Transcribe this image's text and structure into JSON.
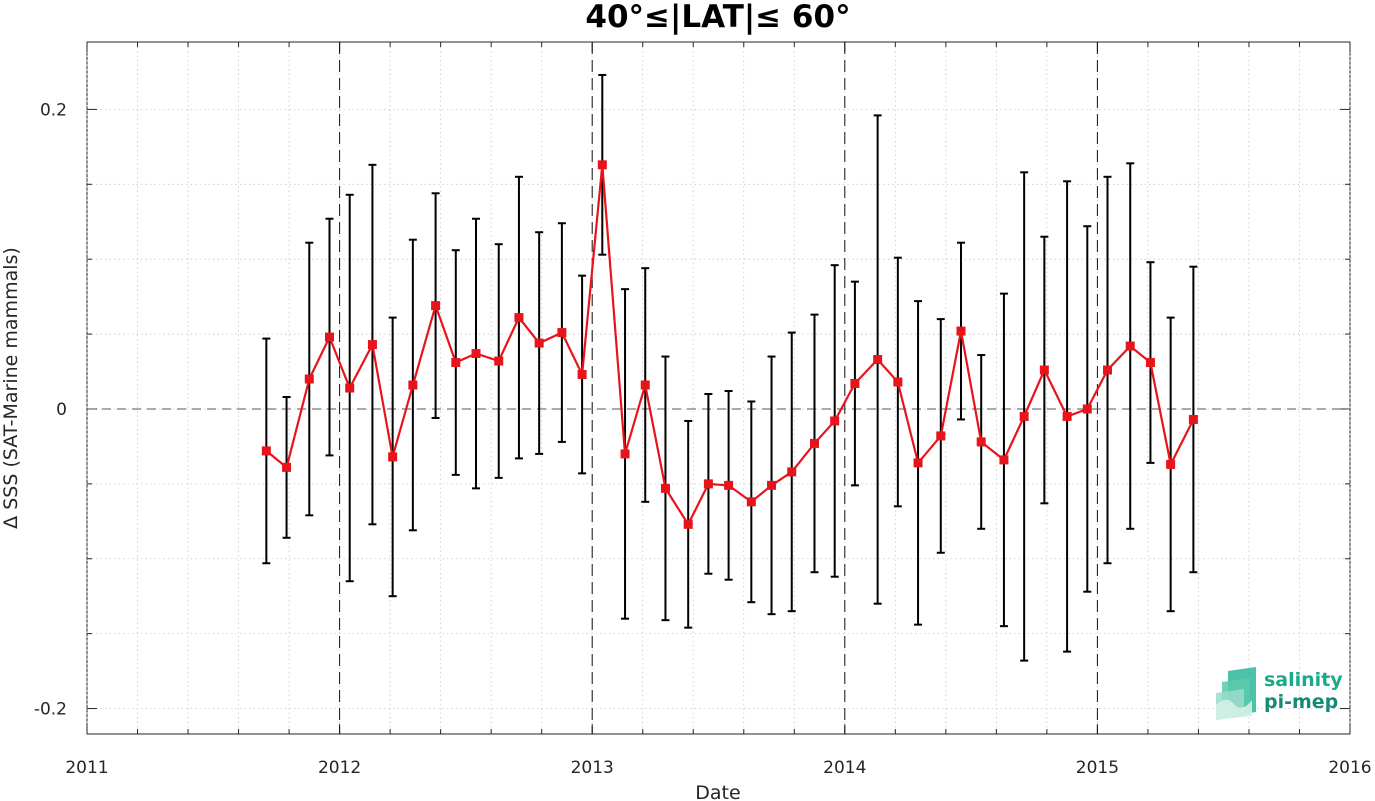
{
  "chart_data": {
    "type": "line",
    "title": "40°≤|LAT|≤ 60°",
    "xlabel": "Date",
    "ylabel": "Δ SSS (SAT-Marine mammals)",
    "xlim": [
      2011,
      2016
    ],
    "ylim": [
      -0.217,
      0.245
    ],
    "x_ticks": [
      "2011",
      "2012",
      "2013",
      "2014",
      "2015",
      "2016"
    ],
    "y_ticks": [
      "-0.2",
      "0",
      "0.2"
    ],
    "grid": "dotted",
    "zero_line": "dashed",
    "year_separators": [
      2012,
      2013,
      2014,
      2015
    ],
    "series": [
      {
        "color": "#e8141b",
        "marker": "square",
        "error_bar_color": "#000000",
        "x": [
          2011.71,
          2011.79,
          2011.88,
          2011.96,
          2012.04,
          2012.13,
          2012.21,
          2012.29,
          2012.38,
          2012.46,
          2012.54,
          2012.63,
          2012.71,
          2012.79,
          2012.88,
          2012.96,
          2013.04,
          2013.13,
          2013.21,
          2013.29,
          2013.38,
          2013.46,
          2013.54,
          2013.63,
          2013.71,
          2013.79,
          2013.88,
          2013.96,
          2014.04,
          2014.13,
          2014.21,
          2014.29,
          2014.38,
          2014.46,
          2014.54,
          2014.63,
          2014.71,
          2014.79,
          2014.88,
          2014.96,
          2015.04,
          2015.13,
          2015.21,
          2015.29,
          2015.38
        ],
        "y": [
          -0.028,
          -0.039,
          0.02,
          0.048,
          0.014,
          0.043,
          -0.032,
          0.016,
          0.069,
          0.031,
          0.037,
          0.032,
          0.061,
          0.044,
          0.051,
          0.023,
          0.163,
          -0.03,
          0.016,
          -0.053,
          -0.077,
          -0.05,
          -0.051,
          -0.062,
          -0.051,
          -0.042,
          -0.023,
          -0.008,
          0.017,
          0.033,
          0.018,
          -0.036,
          -0.018,
          0.052,
          -0.022,
          -0.034,
          -0.005,
          0.026,
          -0.005,
          0.0,
          0.026,
          0.042,
          0.031,
          -0.037,
          -0.007
        ],
        "err": [
          0.075,
          0.047,
          0.091,
          0.079,
          0.129,
          0.12,
          0.093,
          0.097,
          0.075,
          0.075,
          0.09,
          0.078,
          0.094,
          0.074,
          0.073,
          0.066,
          0.06,
          0.11,
          0.078,
          0.088,
          0.069,
          0.06,
          0.063,
          0.067,
          0.086,
          0.093,
          0.086,
          0.104,
          0.068,
          0.163,
          0.083,
          0.108,
          0.078,
          0.059,
          0.058,
          0.111,
          0.163,
          0.089,
          0.157,
          0.122,
          0.129,
          0.122,
          0.067,
          0.098,
          0.102
        ]
      }
    ]
  },
  "logo": {
    "line1": "salinity",
    "line2": "pi-mep"
  }
}
